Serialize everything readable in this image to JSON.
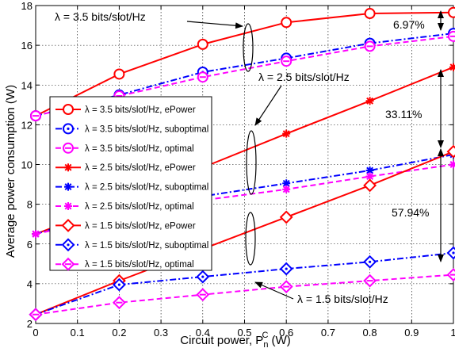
{
  "chart_data": {
    "type": "line",
    "xlabel": "Circuit power, P",
    "xlabel_sub": "n",
    "xlabel_sup": "C",
    "xlabel_unit": " (W)",
    "ylabel": "Average power consumption (W)",
    "xlim": [
      0,
      1
    ],
    "ylim": [
      2,
      18
    ],
    "xticks": [
      0,
      0.1,
      0.2,
      0.3,
      0.4,
      0.5,
      0.6,
      0.7,
      0.8,
      0.9,
      1
    ],
    "xtick_labels": [
      "0",
      "0.1",
      "0.2",
      "0.3",
      "0.4",
      "0.5",
      "0.6",
      "0.7",
      "0.8",
      "0.9",
      "1"
    ],
    "yticks": [
      2,
      4,
      6,
      8,
      10,
      12,
      14,
      16,
      18
    ],
    "ytick_labels": [
      "2",
      "4",
      "6",
      "8",
      "10",
      "12",
      "14",
      "16",
      "18"
    ],
    "grid": true,
    "legend_position": "middle-left",
    "x": [
      0,
      0.2,
      0.4,
      0.6,
      0.8,
      1.0
    ],
    "series": [
      {
        "name": "λ = 3.5 bits/slot/Hz, ePower",
        "values": [
          12.45,
          14.55,
          16.05,
          17.15,
          17.6,
          17.65
        ],
        "color": "#ff0000",
        "dash": "solid",
        "marker": "circle"
      },
      {
        "name": "λ = 3.5 bits/slot/Hz, suboptimal",
        "values": [
          12.45,
          13.5,
          14.65,
          15.35,
          16.1,
          16.6
        ],
        "color": "#0000ff",
        "dash": "dashdot",
        "marker": "circle-dot"
      },
      {
        "name": "λ = 3.5 bits/slot/Hz, optimal",
        "values": [
          12.45,
          13.45,
          14.4,
          15.2,
          15.95,
          16.45
        ],
        "color": "#ff00ff",
        "dash": "dashed",
        "marker": "circle-bar"
      },
      {
        "name": "λ = 2.5 bits/slot/Hz, ePower",
        "values": [
          6.5,
          8.1,
          9.85,
          11.55,
          13.2,
          14.9
        ],
        "color": "#ff0000",
        "dash": "solid",
        "marker": "star"
      },
      {
        "name": "λ = 2.5 bits/slot/Hz, suboptimal",
        "values": [
          6.5,
          7.75,
          8.4,
          9.05,
          9.7,
          10.5
        ],
        "color": "#0000ff",
        "dash": "dashdot",
        "marker": "star"
      },
      {
        "name": "λ = 2.5 bits/slot/Hz, optimal",
        "values": [
          6.5,
          7.45,
          8.2,
          8.75,
          9.4,
          10.0
        ],
        "color": "#ff00ff",
        "dash": "dashed",
        "marker": "star"
      },
      {
        "name": "λ = 1.5 bits/slot/Hz, ePower",
        "values": [
          2.45,
          4.15,
          5.75,
          7.35,
          8.95,
          10.65
        ],
        "color": "#ff0000",
        "dash": "solid",
        "marker": "diamond"
      },
      {
        "name": "λ = 1.5 bits/slot/Hz, suboptimal",
        "values": [
          2.45,
          3.95,
          4.35,
          4.75,
          5.1,
          5.55
        ],
        "color": "#0000ff",
        "dash": "dashdot",
        "marker": "diamond-dot"
      },
      {
        "name": "λ = 1.5 bits/slot/Hz, optimal",
        "values": [
          2.45,
          3.05,
          3.45,
          3.85,
          4.15,
          4.45
        ],
        "color": "#ff00ff",
        "dash": "dashed",
        "marker": "diamond-bar"
      }
    ],
    "annotations": [
      {
        "text": "λ = 3.5 bits/slot/Hz"
      },
      {
        "text": "λ = 2.5 bits/slot/Hz"
      },
      {
        "text": "λ = 1.5 bits/slot/Hz"
      },
      {
        "text": "6.97%"
      },
      {
        "text": "33.11%"
      },
      {
        "text": "57.94%"
      }
    ]
  }
}
